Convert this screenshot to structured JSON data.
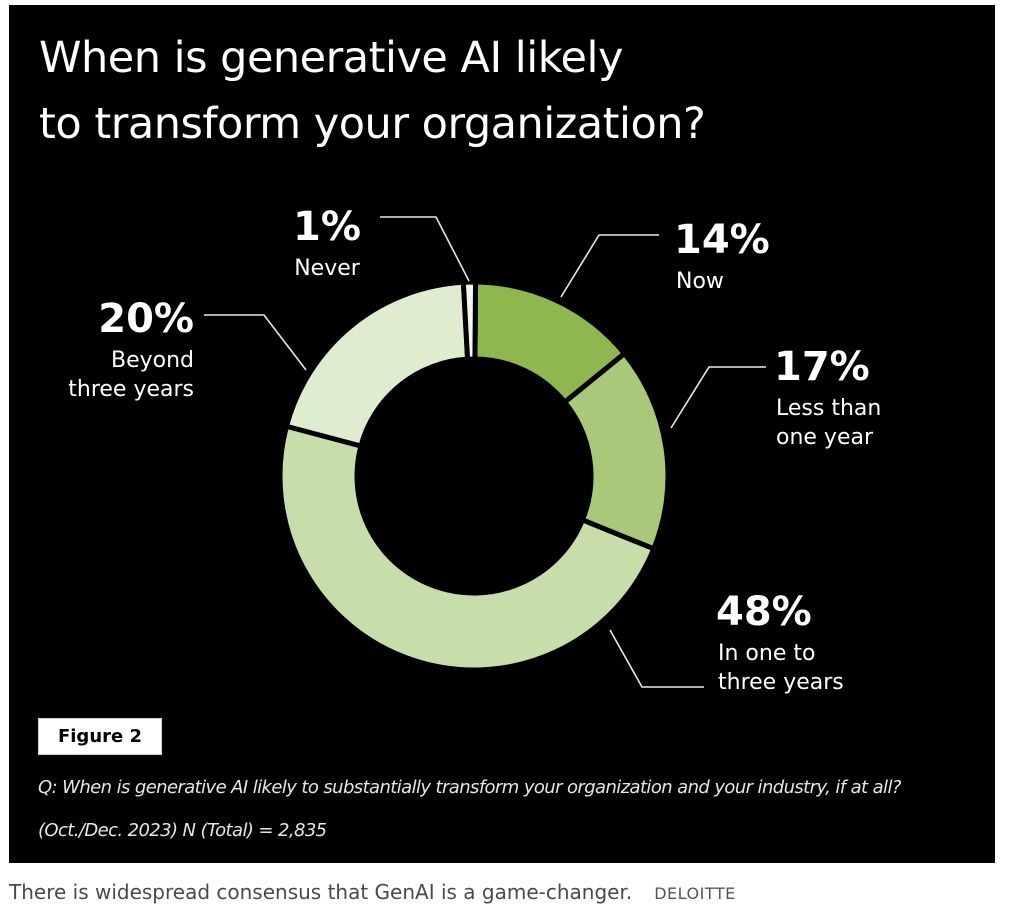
{
  "chart_data": {
    "type": "pie",
    "title": "When is generative AI likely to transform your organization?",
    "slices": [
      {
        "pct_label": "14%",
        "label_lines": [
          "Now"
        ],
        "value": 14,
        "color": "#8fb74f"
      },
      {
        "pct_label": "17%",
        "label_lines": [
          "Less than",
          "one year"
        ],
        "value": 17,
        "color": "#a9c87a"
      },
      {
        "pct_label": "48%",
        "label_lines": [
          "In one to",
          "three years"
        ],
        "value": 48,
        "color": "#c8deaa"
      },
      {
        "pct_label": "20%",
        "label_lines": [
          "Beyond",
          "three years"
        ],
        "value": 20,
        "color": "#e0ecd0"
      },
      {
        "pct_label": "1%",
        "label_lines": [
          "Never"
        ],
        "value": 1,
        "color": "#f2f7ea"
      }
    ],
    "legend": "none"
  },
  "figure": {
    "tag": "Figure 2",
    "question": "Q: When is generative AI likely to substantially transform your organization and your industry, if at all?",
    "sample": "(Oct./Dec. 2023) N (Total) = 2,835"
  },
  "caption": {
    "text": "There is widespread consensus that GenAI is a game-changer.",
    "credit": "DELOITTE"
  }
}
